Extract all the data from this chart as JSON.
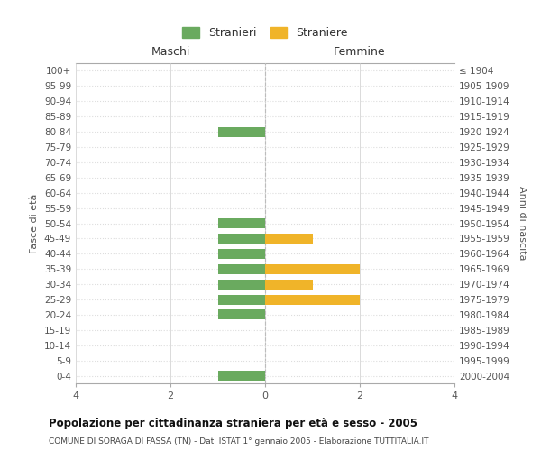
{
  "age_groups": [
    "100+",
    "95-99",
    "90-94",
    "85-89",
    "80-84",
    "75-79",
    "70-74",
    "65-69",
    "60-64",
    "55-59",
    "50-54",
    "45-49",
    "40-44",
    "35-39",
    "30-34",
    "25-29",
    "20-24",
    "15-19",
    "10-14",
    "5-9",
    "0-4"
  ],
  "birth_years": [
    "≤ 1904",
    "1905-1909",
    "1910-1914",
    "1915-1919",
    "1920-1924",
    "1925-1929",
    "1930-1934",
    "1935-1939",
    "1940-1944",
    "1945-1949",
    "1950-1954",
    "1955-1959",
    "1960-1964",
    "1965-1969",
    "1970-1974",
    "1975-1979",
    "1980-1984",
    "1985-1989",
    "1990-1994",
    "1995-1999",
    "2000-2004"
  ],
  "males": [
    0,
    0,
    0,
    0,
    1,
    0,
    0,
    0,
    0,
    0,
    1,
    1,
    1,
    1,
    1,
    1,
    1,
    0,
    0,
    0,
    1
  ],
  "females": [
    0,
    0,
    0,
    0,
    0,
    0,
    0,
    0,
    0,
    0,
    0,
    1,
    0,
    2,
    1,
    2,
    0,
    0,
    0,
    0,
    0
  ],
  "male_color": "#6aaa5f",
  "female_color": "#f0b429",
  "xlim": 4,
  "xlabel_left": "Maschi",
  "xlabel_right": "Femmine",
  "ylabel_left": "Fasce di età",
  "ylabel_right": "Anni di nascita",
  "legend_male": "Stranieri",
  "legend_female": "Straniere",
  "title": "Popolazione per cittadinanza straniera per età e sesso - 2005",
  "subtitle": "COMUNE DI SORAGA DI FASSA (TN) - Dati ISTAT 1° gennaio 2005 - Elaborazione TUTTITALIA.IT",
  "background_color": "#ffffff",
  "grid_color": "#cccccc",
  "grid_color_y": "#dddddd"
}
